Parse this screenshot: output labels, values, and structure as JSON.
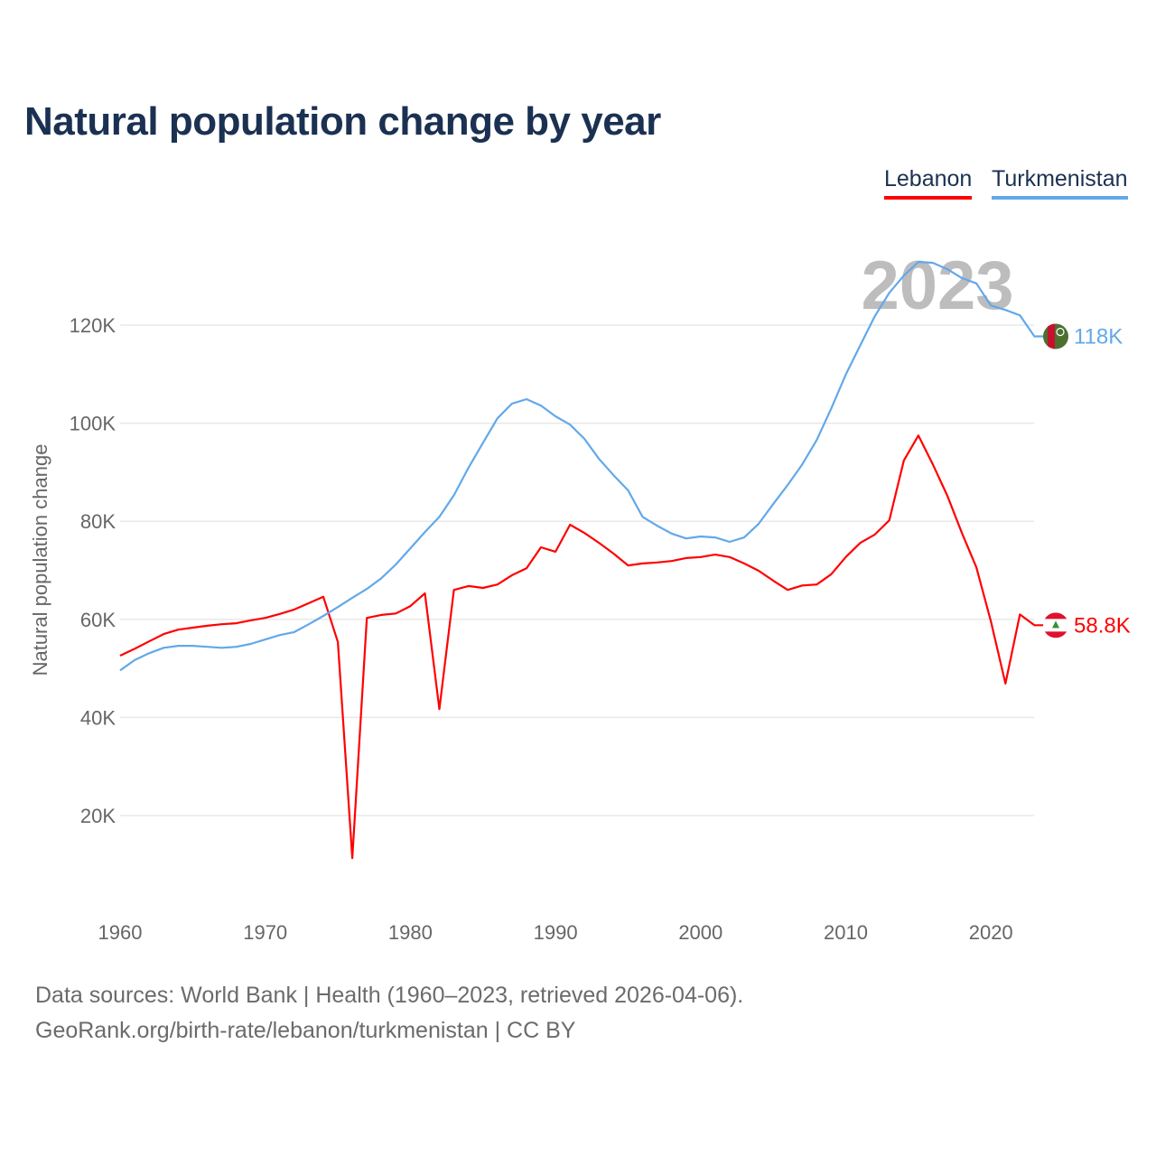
{
  "chart_data": {
    "type": "line",
    "title": "Natural population change by year",
    "ylabel": "Natural population change",
    "xlabel": "",
    "year_watermark": "2023",
    "xlim": [
      1960,
      2023
    ],
    "ylim": [
      0,
      135000
    ],
    "x_ticks": [
      1960,
      1970,
      1980,
      1990,
      2000,
      2010,
      2020
    ],
    "y_ticks": [
      20000,
      40000,
      60000,
      80000,
      100000,
      120000
    ],
    "y_tick_labels": [
      "20K",
      "40K",
      "60K",
      "80K",
      "100K",
      "120K"
    ],
    "grid": true,
    "legend_placement": "top-right",
    "x": [
      1960,
      1961,
      1962,
      1963,
      1964,
      1965,
      1966,
      1967,
      1968,
      1969,
      1970,
      1971,
      1972,
      1973,
      1974,
      1975,
      1976,
      1977,
      1978,
      1979,
      1980,
      1981,
      1982,
      1983,
      1984,
      1985,
      1986,
      1987,
      1988,
      1989,
      1990,
      1991,
      1992,
      1993,
      1994,
      1995,
      1996,
      1997,
      1998,
      1999,
      2000,
      2001,
      2002,
      2003,
      2004,
      2005,
      2006,
      2007,
      2008,
      2009,
      2010,
      2011,
      2012,
      2013,
      2014,
      2015,
      2016,
      2017,
      2018,
      2019,
      2020,
      2021,
      2022,
      2023
    ],
    "series": [
      {
        "name": "Lebanon",
        "color": "#ff0000",
        "end_label": "58.8K",
        "flag": "lebanon-flag",
        "values": [
          52600,
          54000,
          55500,
          57000,
          57900,
          58300,
          58700,
          59000,
          59200,
          59800,
          60300,
          61100,
          62000,
          63300,
          64600,
          55400,
          11300,
          60300,
          60900,
          61200,
          62700,
          65300,
          41700,
          66000,
          66800,
          66400,
          67100,
          69000,
          70400,
          74700,
          73800,
          79300,
          77600,
          75600,
          73400,
          71000,
          71400,
          71600,
          71900,
          72500,
          72700,
          73200,
          72700,
          71400,
          69900,
          67900,
          66000,
          66900,
          67100,
          69200,
          72700,
          75600,
          77300,
          80200,
          92400,
          97500,
          91600,
          85200,
          77600,
          70600,
          59600,
          46900,
          61000,
          58800
        ]
      },
      {
        "name": "Turkmenistan",
        "color": "#62a8ea",
        "end_label": "118K",
        "flag": "turkmenistan-flag",
        "values": [
          49600,
          51700,
          53100,
          54200,
          54600,
          54600,
          54400,
          54200,
          54400,
          55000,
          55900,
          56800,
          57400,
          59000,
          60700,
          62500,
          64400,
          66200,
          68400,
          71200,
          74500,
          77800,
          80900,
          85300,
          90900,
          96000,
          101000,
          104000,
          104900,
          103600,
          101400,
          99700,
          96800,
          92700,
          89400,
          86300,
          80900,
          79100,
          77500,
          76500,
          76900,
          76700,
          75800,
          76700,
          79500,
          83500,
          87400,
          91600,
          96600,
          103000,
          109900,
          115900,
          121800,
          126600,
          130100,
          132900,
          132700,
          131400,
          129600,
          128500,
          124000,
          123100,
          122000,
          117700
        ]
      }
    ]
  },
  "sources": {
    "line1": "Data sources: World Bank | Health (1960–2023, retrieved 2026-04-06).",
    "line2": "GeoRank.org/birth-rate/lebanon/turkmenistan | CC BY"
  }
}
